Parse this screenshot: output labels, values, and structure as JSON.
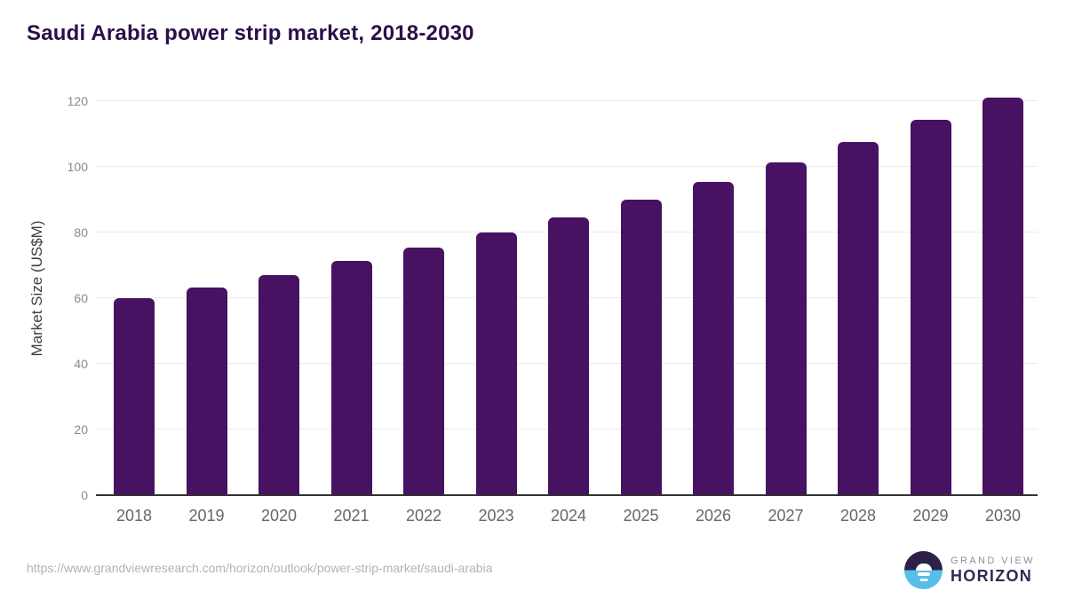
{
  "header": {
    "title": "Saudi Arabia power strip market, 2018-2030"
  },
  "chart_data": {
    "type": "bar",
    "title": "Saudi Arabia power strip market, 2018-2030",
    "categories": [
      "2018",
      "2019",
      "2020",
      "2021",
      "2022",
      "2023",
      "2024",
      "2025",
      "2026",
      "2027",
      "2028",
      "2029",
      "2030"
    ],
    "values": [
      60.0,
      63.2,
      67.0,
      71.4,
      75.5,
      80.0,
      84.6,
      90.0,
      95.4,
      101.3,
      107.7,
      114.2,
      121.0
    ],
    "xlabel": "",
    "ylabel": "Market Size (US$M)",
    "ylim": [
      0,
      126
    ],
    "yticks": [
      0,
      20,
      40,
      60,
      80,
      100,
      120
    ],
    "grid": true,
    "legend": false,
    "bar_color": "#471261"
  },
  "footer": {
    "source_url": "https://www.grandviewresearch.com/horizon/outlook/power-strip-market/saudi-arabia",
    "logo": {
      "brand": "GRAND VIEW",
      "product": "HORIZON"
    }
  },
  "colors": {
    "bar": "#471261",
    "title": "#2c0f4a",
    "gridline": "#ebebeb",
    "axis_line": "#333333",
    "ytick_label": "#8a8a8a",
    "xtick_label": "#666666",
    "source_text": "#b3b3b3",
    "logo_top": "#2e2147",
    "logo_bottom": "#55bfe9",
    "logo_brand_text": "#8e8e99",
    "logo_product_text": "#342853"
  }
}
